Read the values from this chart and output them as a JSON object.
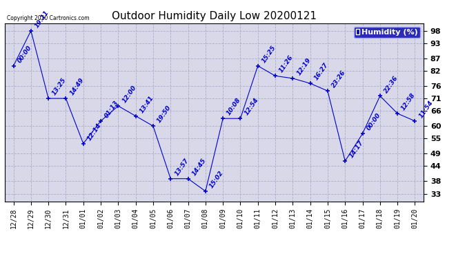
{
  "title": "Outdoor Humidity Daily Low 20200121",
  "x_labels": [
    "12/28",
    "12/29",
    "12/30",
    "12/31",
    "01/01",
    "01/02",
    "01/03",
    "01/04",
    "01/05",
    "01/06",
    "01/07",
    "01/08",
    "01/09",
    "01/10",
    "01/11",
    "01/12",
    "01/13",
    "01/14",
    "01/15",
    "01/16",
    "01/17",
    "01/18",
    "01/19",
    "01/20"
  ],
  "x_values": [
    0,
    1,
    2,
    3,
    4,
    5,
    6,
    7,
    8,
    9,
    10,
    11,
    12,
    13,
    14,
    15,
    16,
    17,
    18,
    19,
    20,
    21,
    22,
    23
  ],
  "y_values": [
    84,
    98,
    71,
    71,
    53,
    62,
    68,
    64,
    60,
    39,
    39,
    34,
    63,
    63,
    84,
    80,
    79,
    77,
    74,
    46,
    57,
    72,
    65,
    62
  ],
  "point_labels": [
    "00:00",
    "19:11",
    "13:25",
    "14:49",
    "12:14",
    "01:13",
    "12:00",
    "13:41",
    "19:50",
    "13:57",
    "14:45",
    "15:02",
    "10:08",
    "12:54",
    "15:25",
    "11:26",
    "12:19",
    "16:27",
    "23:26",
    "14:17",
    "00:00",
    "22:36",
    "12:58",
    "11:54"
  ],
  "yticks": [
    33,
    38,
    44,
    49,
    55,
    60,
    66,
    71,
    76,
    82,
    87,
    93,
    98
  ],
  "line_color": "#0000cc",
  "marker_color": "#0000cc",
  "background_color": "#ffffff",
  "plot_bg_color": "#d8d8e8",
  "grid_color": "#aaaacc",
  "legend_label": "Humidity (%)",
  "legend_bg": "#0000aa",
  "legend_text_color": "#ffffff",
  "copyright_text": "Copyright 2020 Cartronics.com",
  "title_fontsize": 11,
  "label_fontsize": 6.5,
  "tick_fontsize": 7,
  "ylabel_right_fontsize": 8
}
